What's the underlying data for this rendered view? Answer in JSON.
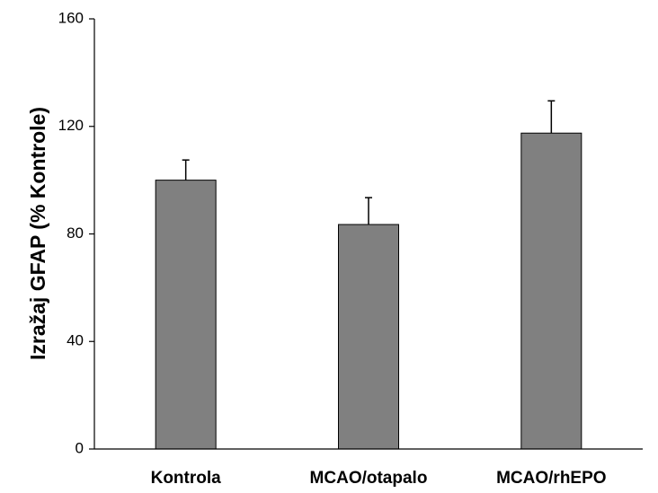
{
  "chart_data": {
    "type": "bar",
    "title": "",
    "xlabel": "",
    "ylabel": "Izražaj GFAP (% Kontrole)",
    "categories": [
      "Kontrola",
      "MCAO/otapalo",
      "MCAO/rhEPO"
    ],
    "values": [
      100,
      83.5,
      117.5
    ],
    "error_plus": [
      7.5,
      10,
      12
    ],
    "ylim": [
      0,
      160
    ],
    "yticks": [
      0,
      40,
      80,
      120,
      160
    ],
    "grid": false,
    "legend": "none",
    "bar_color": "#808080",
    "edge_color": "#000000"
  }
}
